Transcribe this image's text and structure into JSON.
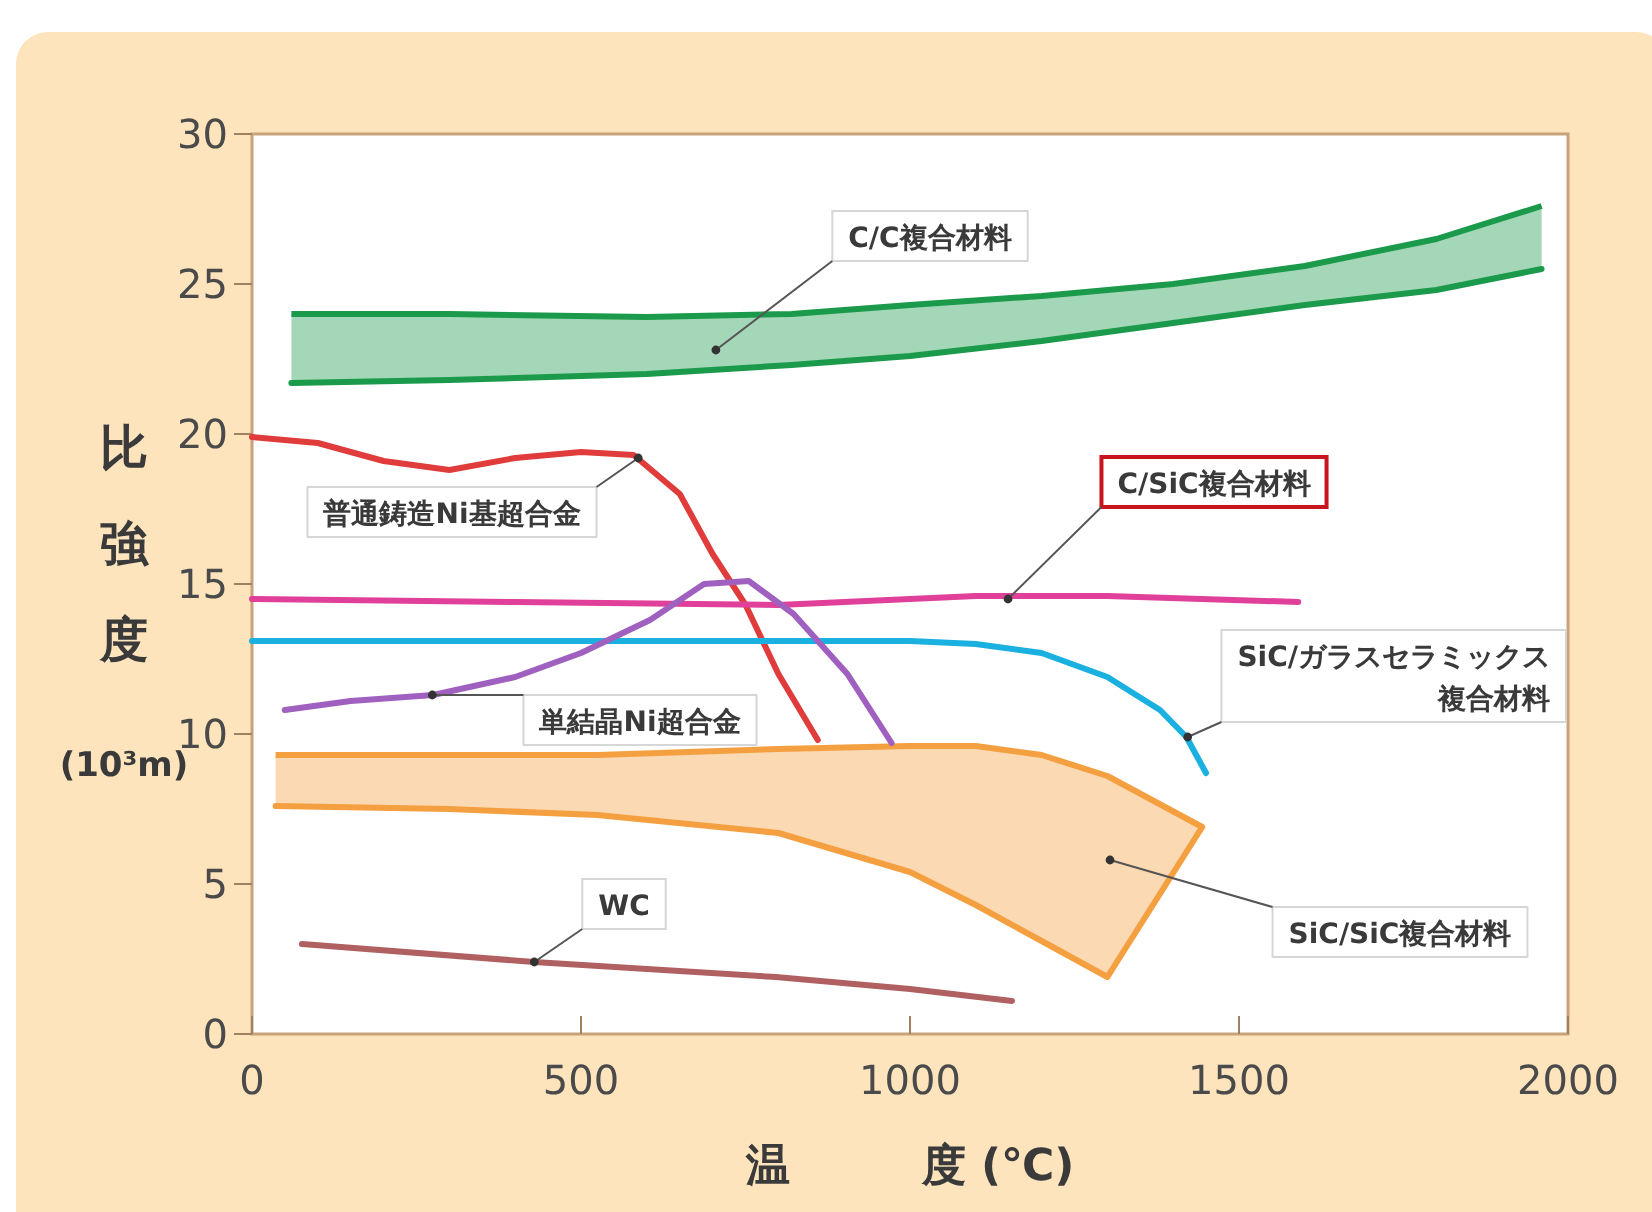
{
  "chart_data": {
    "type": "line",
    "xlabel": "温　　　度 (℃)",
    "ylabel": "比強度 (10³m)",
    "xlim": [
      0,
      2000
    ],
    "ylim": [
      0,
      30
    ],
    "xticks": [
      0,
      500,
      1000,
      1500,
      2000
    ],
    "yticks": [
      0,
      5,
      10,
      15,
      20,
      25,
      30
    ],
    "grid": false,
    "line_style": "solid",
    "series": [
      {
        "type": "area",
        "color": "#1a9a4a",
        "x": [
          60,
          300,
          600,
          820,
          1000,
          1200,
          1400,
          1600,
          1800,
          1960
        ],
        "values": [
          24.0,
          24.0,
          23.9,
          24.0,
          24.3,
          24.6,
          25.0,
          25.6,
          26.5,
          27.6
        ]
      },
      {
        "color": "#1a9a4a",
        "x": [
          60,
          300,
          600,
          820,
          1000,
          1200,
          1400,
          1600,
          1800,
          1960
        ],
        "values": [
          21.7,
          21.8,
          22.0,
          22.3,
          22.6,
          23.1,
          23.7,
          24.3,
          24.8,
          25.5
        ]
      },
      {
        "type": "area",
        "color": "#f5a040",
        "x": [
          36,
          300,
          525,
          800,
          1000,
          1100,
          1200,
          1300,
          1444
        ],
        "values": [
          9.3,
          9.3,
          9.3,
          9.5,
          9.6,
          9.6,
          9.3,
          8.6,
          6.9
        ]
      },
      {
        "color": "#f5a040",
        "x": [
          36,
          300,
          525,
          800,
          1000,
          1100,
          1200,
          1300,
          1444
        ],
        "values": [
          7.6,
          7.5,
          7.3,
          6.7,
          5.4,
          4.3,
          3.1,
          1.9,
          6.9
        ]
      },
      {
        "color": "#e03c3c",
        "x": [
          0,
          100,
          200,
          300,
          400,
          500,
          580,
          650,
          700,
          750,
          800,
          860
        ],
        "values": [
          19.9,
          19.7,
          19.1,
          18.8,
          19.2,
          19.4,
          19.3,
          18.0,
          16.0,
          14.3,
          12.0,
          9.8
        ]
      },
      {
        "color": "#e0409a",
        "x": [
          0,
          400,
          800,
          1100,
          1300,
          1590
        ],
        "values": [
          14.5,
          14.4,
          14.3,
          14.6,
          14.6,
          14.4
        ]
      },
      {
        "color": "#1ab0e0",
        "x": [
          0,
          500,
          1000,
          1100,
          1200,
          1300,
          1380,
          1420,
          1450
        ],
        "values": [
          13.1,
          13.1,
          13.1,
          13.0,
          12.7,
          11.9,
          10.8,
          9.9,
          8.7
        ]
      },
      {
        "color": "#a060c0",
        "x": [
          50,
          150,
          275,
          400,
          500,
          605,
          687,
          755,
          823,
          905,
          972
        ],
        "values": [
          10.8,
          11.1,
          11.3,
          11.9,
          12.7,
          13.8,
          15.0,
          15.1,
          14.0,
          12.0,
          9.7
        ]
      },
      {
        "color": "#b06060",
        "x": [
          76,
          429,
          796,
          1000,
          1155
        ],
        "values": [
          3.0,
          2.4,
          1.9,
          1.5,
          1.1
        ]
      }
    ],
    "annotations": [
      {
        "text": "C/C複合材料",
        "x": 705,
        "y": 22.8
      },
      {
        "text": "普通鋳造Ni基超合金",
        "x": 587,
        "y": 19.2
      },
      {
        "text": "C/SiC複合材料",
        "x": 1149,
        "y": 14.5
      },
      {
        "text": "SiC/ガラスセラミックス複合材料",
        "x": 1422,
        "y": 9.9
      },
      {
        "text": "単結晶Ni超合金",
        "x": 274,
        "y": 11.3
      },
      {
        "text": "WC",
        "x": 429,
        "y": 2.4
      },
      {
        "text": "SiC/SiC複合材料",
        "x": 1304,
        "y": 5.8
      }
    ]
  }
}
